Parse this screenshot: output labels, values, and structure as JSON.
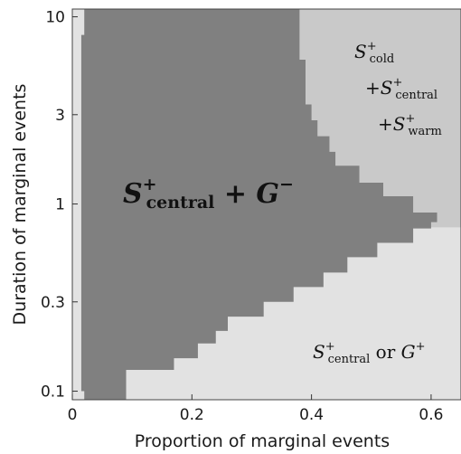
{
  "chart_data": {
    "type": "heatmap",
    "xlabel": "Proportion of marginal events",
    "ylabel": "Duration of marginal events",
    "x_scale": "linear",
    "y_scale": "log",
    "xlim": [
      0.0,
      0.65
    ],
    "ylim": [
      0.09,
      11
    ],
    "x_ticks": [
      0,
      0.2,
      0.4,
      0.6
    ],
    "x_tick_labels": [
      "0",
      "0.2",
      "0.4",
      "0.6"
    ],
    "y_ticks": [
      0.1,
      0.3,
      1,
      3,
      10
    ],
    "y_tick_labels": [
      "0.1",
      "0.3",
      "1",
      "3",
      "10"
    ],
    "grid": false,
    "legend": "none",
    "colors": {
      "central_plus_g_minus": "#808080",
      "cold_central_warm": "#c9c9c9",
      "central_or_g_plus": "#e2e2e2"
    },
    "regions": [
      {
        "id": "central_plus_g_minus",
        "label_parts": [
          "S",
          "+",
          "central",
          " + G",
          "−"
        ],
        "label_position": "middle-left",
        "boundary_right": {
          "y": [
            0.09,
            0.11,
            0.13,
            0.15,
            0.18,
            0.21,
            0.25,
            0.3,
            0.36,
            0.43,
            0.52,
            0.62,
            0.74,
            0.8,
            0.9,
            1.1,
            1.3,
            1.6,
            1.9,
            2.3,
            2.8,
            3.4,
            4.0,
            4.9,
            5.9,
            7.1,
            8.5,
            10.2,
            11
          ],
          "x": [
            0.09,
            0.09,
            0.17,
            0.21,
            0.24,
            0.26,
            0.32,
            0.37,
            0.42,
            0.46,
            0.51,
            0.57,
            0.6,
            0.61,
            0.57,
            0.52,
            0.48,
            0.44,
            0.43,
            0.41,
            0.4,
            0.39,
            0.39,
            0.39,
            0.38,
            0.38,
            0.38,
            0.38,
            0.38
          ]
        },
        "boundary_left": {
          "y": [
            0.09,
            0.1,
            0.15,
            0.3,
            1,
            3,
            8.0,
            8.5,
            11
          ],
          "x": [
            0.02,
            0.02,
            0.015,
            0.015,
            0.015,
            0.015,
            0.015,
            0.02,
            0.02
          ]
        }
      },
      {
        "id": "cold_central_warm",
        "label_lines": [
          [
            "S",
            "+",
            "cold"
          ],
          [
            "+S",
            "+",
            "central"
          ],
          [
            "+S",
            "+",
            "warm"
          ]
        ],
        "label_position": "top-right"
      },
      {
        "id": "central_or_g_plus",
        "label_parts": [
          "S",
          "+",
          "central",
          " or G",
          "+"
        ],
        "label_position": "bottom-right"
      }
    ],
    "transition_point": {
      "x": 0.61,
      "y": 0.75
    }
  },
  "labels": {
    "region_a": {
      "s": "S",
      "sup": "+",
      "sub": "central",
      "rest": " + G",
      "rest_sup": "−"
    },
    "region_b": [
      {
        "s": "S",
        "sup": "+",
        "sub": "cold"
      },
      {
        "s": "+S",
        "sup": "+",
        "sub": "central"
      },
      {
        "s": "+S",
        "sup": "+",
        "sub": "warm"
      }
    ],
    "region_c": {
      "s": "S",
      "sup": "+",
      "sub": "central",
      "rest": " or ",
      "g": "G",
      "g_sup": "+"
    }
  }
}
